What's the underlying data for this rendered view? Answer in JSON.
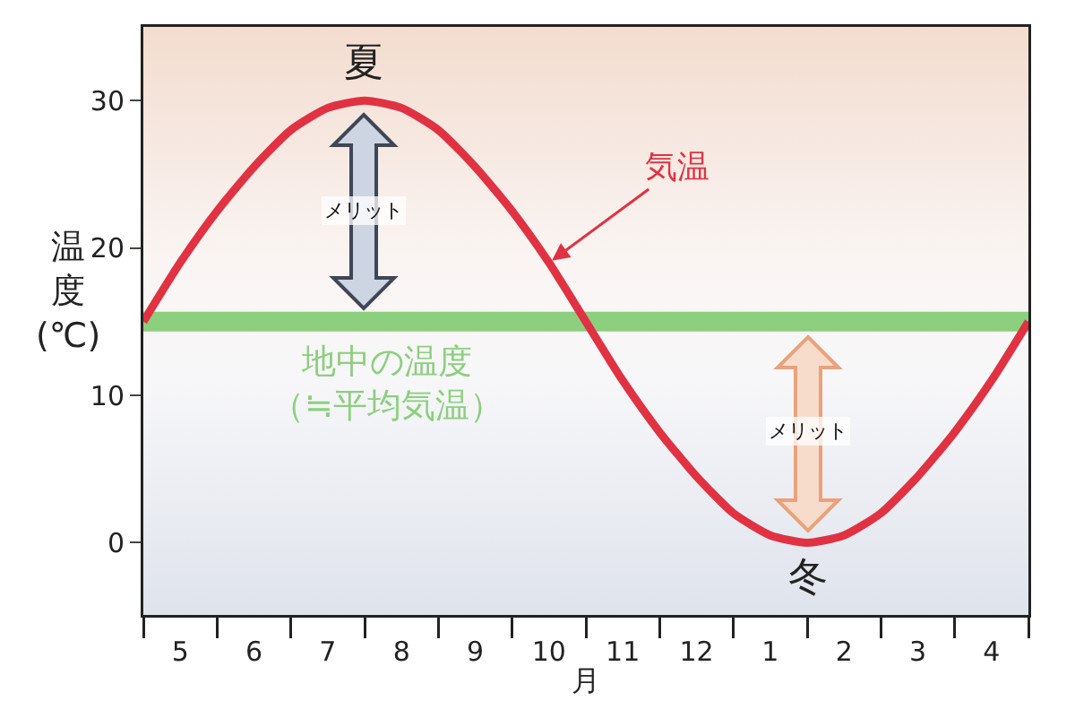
{
  "chart_data": {
    "type": "line",
    "xlabel": "月",
    "ylabel": "温度(℃)",
    "categories": [
      null,
      "5",
      null,
      "6",
      null,
      "7",
      null,
      "8",
      null,
      "9",
      null,
      "10",
      null,
      "11",
      null,
      "12",
      null,
      "1",
      null,
      "2",
      null,
      "3",
      null,
      "4",
      null
    ],
    "series": [
      {
        "color": "#e03242",
        "values": [
          15,
          19,
          22.5,
          25.5,
          28,
          29.5,
          30,
          29.5,
          28,
          25.5,
          22.5,
          19,
          15,
          11,
          7.5,
          4.5,
          2,
          0.5,
          0,
          0.5,
          2,
          4.5,
          7.5,
          11,
          15
        ]
      }
    ],
    "ylim": [
      -4.9,
      35
    ],
    "yticks": [
      0,
      10,
      20,
      30
    ],
    "ref_lines": [
      {
        "axis": "y",
        "value": 15,
        "label": "地中の温度（≒平均気温）",
        "color": "#8ccf7e"
      }
    ],
    "annotations": [
      "夏",
      "冬",
      {
        "text": "気温",
        "x": "10",
        "y": 19
      },
      "メリット",
      "メリット"
    ],
    "grid": false,
    "marker": "none",
    "line_style": "solid"
  }
}
